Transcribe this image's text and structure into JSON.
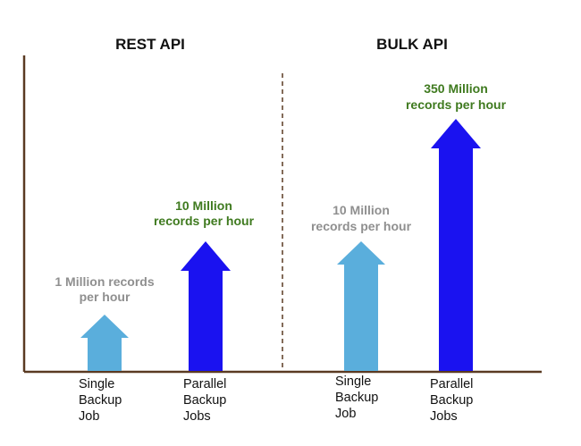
{
  "chart_data": {
    "type": "bar",
    "title": "",
    "xlabel": "",
    "ylabel": "",
    "panels": [
      {
        "title": "REST API",
        "categories": [
          "Single Backup Job",
          "Parallel Backup Jobs"
        ],
        "category_lines": [
          [
            "Single",
            "Backup",
            "Job"
          ],
          [
            "Parallel",
            "Backup",
            "Jobs"
          ]
        ],
        "values": [
          1,
          10
        ],
        "value_labels": [
          [
            "1 Million records",
            "per hour"
          ],
          [
            "10 Million",
            "records per hour"
          ]
        ]
      },
      {
        "title": "BULK API",
        "categories": [
          "Single Backup Job",
          "Parallel Backup Jobs"
        ],
        "category_lines": [
          [
            "Single",
            "Backup",
            "Job"
          ],
          [
            "Parallel",
            "Backup",
            "Jobs"
          ]
        ],
        "values": [
          10,
          350
        ],
        "value_labels": [
          [
            "10 Million",
            "records per hour"
          ],
          [
            "350 Million",
            "records per hour"
          ]
        ]
      }
    ],
    "units": "million records per hour",
    "grid": false,
    "legend": "none"
  },
  "colors": {
    "single_arrow": "#5aaedc",
    "parallel_arrow": "#1a12f0",
    "single_label": "#8f8f8f",
    "parallel_label": "#3f7a1f",
    "axis": "#5a3a22"
  }
}
